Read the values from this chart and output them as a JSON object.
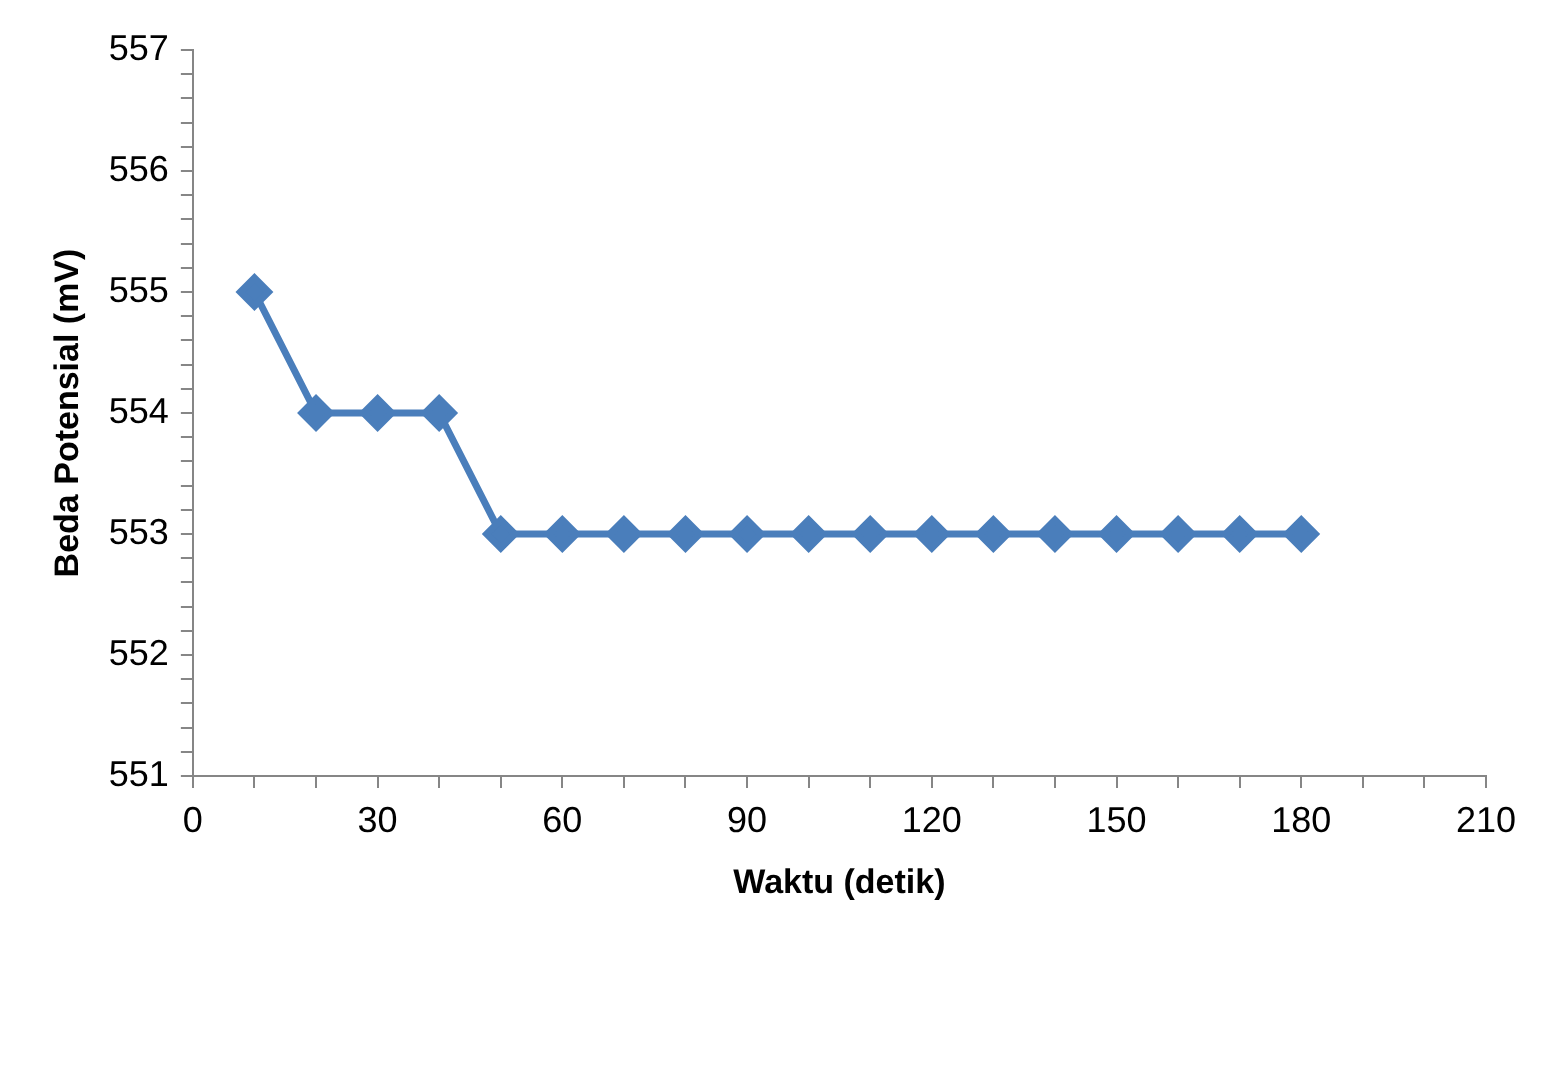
{
  "chart_data": {
    "type": "line",
    "xlabel": "Waktu (detik)",
    "ylabel": "Beda Potensial (mV)",
    "x": [
      10,
      20,
      30,
      40,
      50,
      60,
      70,
      80,
      90,
      100,
      110,
      120,
      130,
      140,
      150,
      160,
      170,
      180
    ],
    "series": [
      {
        "color": "#4a7ebb",
        "values": [
          555,
          554,
          554,
          554,
          553,
          553,
          553,
          553,
          553,
          553,
          553,
          553,
          553,
          553,
          553,
          553,
          553,
          553
        ]
      }
    ],
    "xlim": [
      0,
      210
    ],
    "xticks": [
      0,
      {
        "value": 10,
        "label": null
      },
      {
        "value": 20,
        "label": null
      },
      30,
      {
        "value": 40,
        "label": null
      },
      {
        "value": 50,
        "label": null
      },
      60,
      {
        "value": 70,
        "label": null
      },
      {
        "value": 80,
        "label": null
      },
      90,
      {
        "value": 100,
        "label": null
      },
      {
        "value": 110,
        "label": null
      },
      120,
      {
        "value": 130,
        "label": null
      },
      {
        "value": 140,
        "label": null
      },
      150,
      {
        "value": 160,
        "label": null
      },
      {
        "value": 170,
        "label": null
      },
      180,
      {
        "value": 190,
        "label": null
      },
      {
        "value": 200,
        "label": null
      },
      210
    ],
    "ylim": [
      551,
      557
    ],
    "yticks": [
      551,
      {
        "value": 551.2,
        "label": null
      },
      {
        "value": 551.4,
        "label": null
      },
      {
        "value": 551.6,
        "label": null
      },
      {
        "value": 551.8,
        "label": null
      },
      552,
      {
        "value": 552.2,
        "label": null
      },
      {
        "value": 552.4,
        "label": null
      },
      {
        "value": 552.6,
        "label": null
      },
      {
        "value": 552.8,
        "label": null
      },
      553,
      {
        "value": 553.2,
        "label": null
      },
      {
        "value": 553.4,
        "label": null
      },
      {
        "value": 553.6,
        "label": null
      },
      {
        "value": 553.8,
        "label": null
      },
      554,
      {
        "value": 554.2,
        "label": null
      },
      {
        "value": 554.4,
        "label": null
      },
      {
        "value": 554.6,
        "label": null
      },
      {
        "value": 554.8,
        "label": null
      },
      555,
      {
        "value": 555.2,
        "label": null
      },
      {
        "value": 555.4,
        "label": null
      },
      {
        "value": 555.6,
        "label": null
      },
      {
        "value": 555.8,
        "label": null
      },
      556,
      {
        "value": 556.2,
        "label": null
      },
      {
        "value": 556.4,
        "label": null
      },
      {
        "value": 556.6,
        "label": null
      },
      {
        "value": 556.8,
        "label": null
      },
      557
    ],
    "grid": false,
    "legend": false,
    "marker": "diamond",
    "line_style": "solid"
  }
}
